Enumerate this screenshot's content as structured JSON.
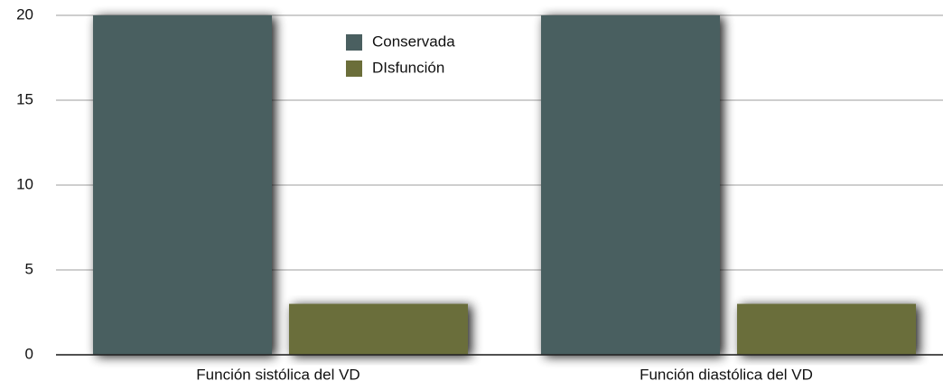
{
  "chart_data": {
    "type": "bar",
    "categories": [
      "Función sistólica del VD",
      "Función diastólica del VD"
    ],
    "series": [
      {
        "name": "Conservada",
        "color": "#4a5f60",
        "values": [
          20,
          20
        ]
      },
      {
        "name": "DIsfunción",
        "color": "#6b6e3a",
        "values": [
          3,
          3
        ]
      }
    ],
    "ylim": [
      0,
      20
    ],
    "yticks": [
      0,
      5,
      10,
      15,
      20
    ],
    "grid": true
  }
}
